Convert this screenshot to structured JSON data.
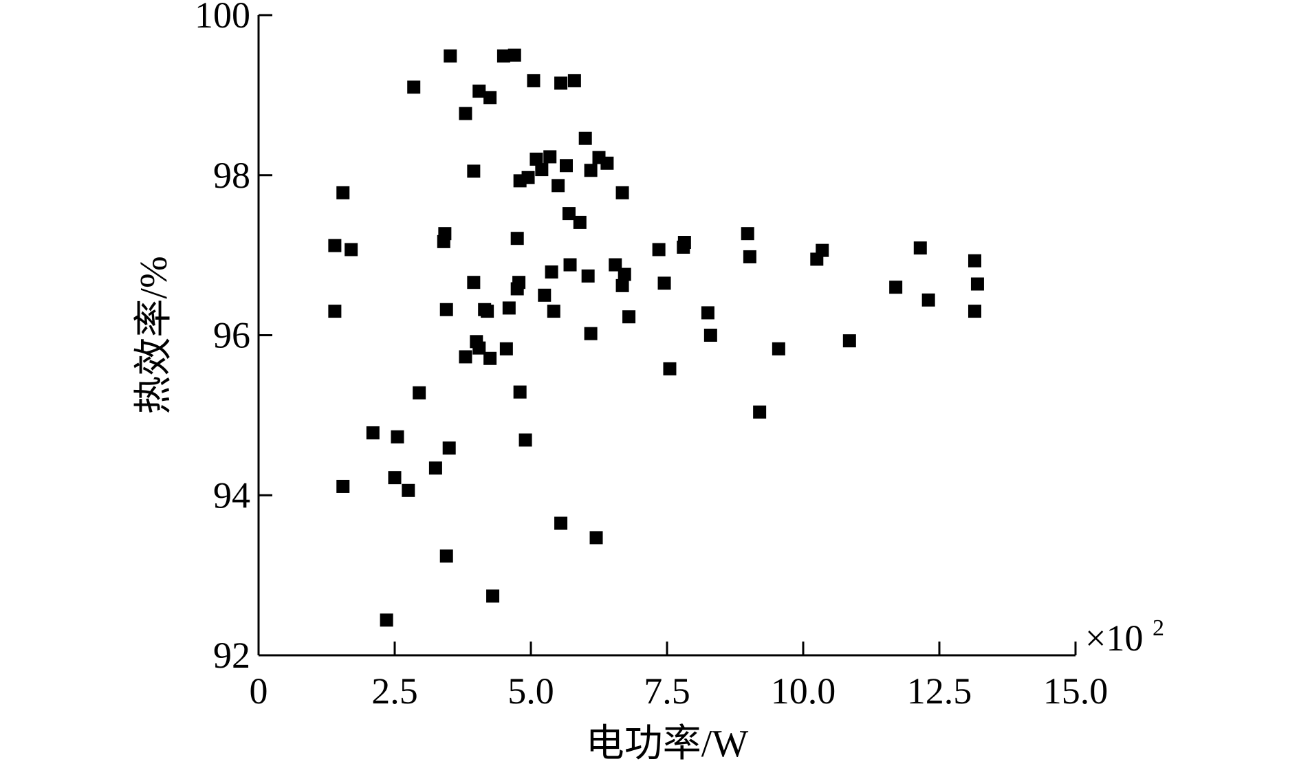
{
  "chart_data": {
    "type": "scatter",
    "title": "",
    "xlabel": "电功率/W",
    "ylabel": "热效率/%",
    "x_multiplier_label": "×10",
    "x_multiplier_exponent": "2",
    "xlim": [
      0,
      15
    ],
    "ylim": [
      92,
      100
    ],
    "x_ticks": [
      0,
      2.5,
      5,
      7.5,
      10,
      12.5,
      15
    ],
    "x_tick_labels": [
      "0",
      "2.5",
      "5.0",
      "7.5",
      "10.0",
      "12.5",
      "15.0"
    ],
    "y_ticks": [
      92,
      94,
      96,
      98,
      100
    ],
    "y_tick_labels": [
      "92",
      "94",
      "96",
      "98",
      "100"
    ],
    "grid": false,
    "marker": "square",
    "marker_color": "#000000",
    "points": [
      [
        1.4,
        97.12
      ],
      [
        1.4,
        96.3
      ],
      [
        1.55,
        97.78
      ],
      [
        1.55,
        94.11
      ],
      [
        1.7,
        97.07
      ],
      [
        2.1,
        94.78
      ],
      [
        2.35,
        92.44
      ],
      [
        2.5,
        94.22
      ],
      [
        2.55,
        94.73
      ],
      [
        2.75,
        94.06
      ],
      [
        2.85,
        99.1
      ],
      [
        2.95,
        95.28
      ],
      [
        3.25,
        94.34
      ],
      [
        3.4,
        97.17
      ],
      [
        3.42,
        97.27
      ],
      [
        3.45,
        96.32
      ],
      [
        3.45,
        93.24
      ],
      [
        3.5,
        94.59
      ],
      [
        3.52,
        99.49
      ],
      [
        3.8,
        98.77
      ],
      [
        3.8,
        95.73
      ],
      [
        3.95,
        98.05
      ],
      [
        3.95,
        96.66
      ],
      [
        4.0,
        95.92
      ],
      [
        4.05,
        95.84
      ],
      [
        4.05,
        99.05
      ],
      [
        4.15,
        96.32
      ],
      [
        4.2,
        96.3
      ],
      [
        4.25,
        98.97
      ],
      [
        4.25,
        95.71
      ],
      [
        4.3,
        92.74
      ],
      [
        4.5,
        99.49
      ],
      [
        4.55,
        95.83
      ],
      [
        4.6,
        96.34
      ],
      [
        4.7,
        99.5
      ],
      [
        4.75,
        97.21
      ],
      [
        4.75,
        96.58
      ],
      [
        4.78,
        96.66
      ],
      [
        4.8,
        97.93
      ],
      [
        4.8,
        95.29
      ],
      [
        4.9,
        94.69
      ],
      [
        4.95,
        97.97
      ],
      [
        5.05,
        99.18
      ],
      [
        5.1,
        98.2
      ],
      [
        5.2,
        98.07
      ],
      [
        5.25,
        96.5
      ],
      [
        5.35,
        98.23
      ],
      [
        5.38,
        96.79
      ],
      [
        5.42,
        96.3
      ],
      [
        5.5,
        97.87
      ],
      [
        5.55,
        99.15
      ],
      [
        5.55,
        93.65
      ],
      [
        5.65,
        98.12
      ],
      [
        5.7,
        97.52
      ],
      [
        5.72,
        96.88
      ],
      [
        5.8,
        99.18
      ],
      [
        5.9,
        97.41
      ],
      [
        6.0,
        98.46
      ],
      [
        6.05,
        96.74
      ],
      [
        6.1,
        98.06
      ],
      [
        6.1,
        96.02
      ],
      [
        6.2,
        93.47
      ],
      [
        6.25,
        98.22
      ],
      [
        6.4,
        98.15
      ],
      [
        6.55,
        96.88
      ],
      [
        6.68,
        96.62
      ],
      [
        6.68,
        97.78
      ],
      [
        6.72,
        96.76
      ],
      [
        6.8,
        96.23
      ],
      [
        7.35,
        97.07
      ],
      [
        7.45,
        96.65
      ],
      [
        7.55,
        95.58
      ],
      [
        7.8,
        97.1
      ],
      [
        7.82,
        97.16
      ],
      [
        8.25,
        96.28
      ],
      [
        8.3,
        96.0
      ],
      [
        8.98,
        97.27
      ],
      [
        9.02,
        96.98
      ],
      [
        9.2,
        95.04
      ],
      [
        9.55,
        95.83
      ],
      [
        10.25,
        96.95
      ],
      [
        10.35,
        97.06
      ],
      [
        10.85,
        95.93
      ],
      [
        11.7,
        96.6
      ],
      [
        12.15,
        97.09
      ],
      [
        12.3,
        96.44
      ],
      [
        13.15,
        96.93
      ],
      [
        13.15,
        96.3
      ],
      [
        13.2,
        96.64
      ]
    ]
  }
}
